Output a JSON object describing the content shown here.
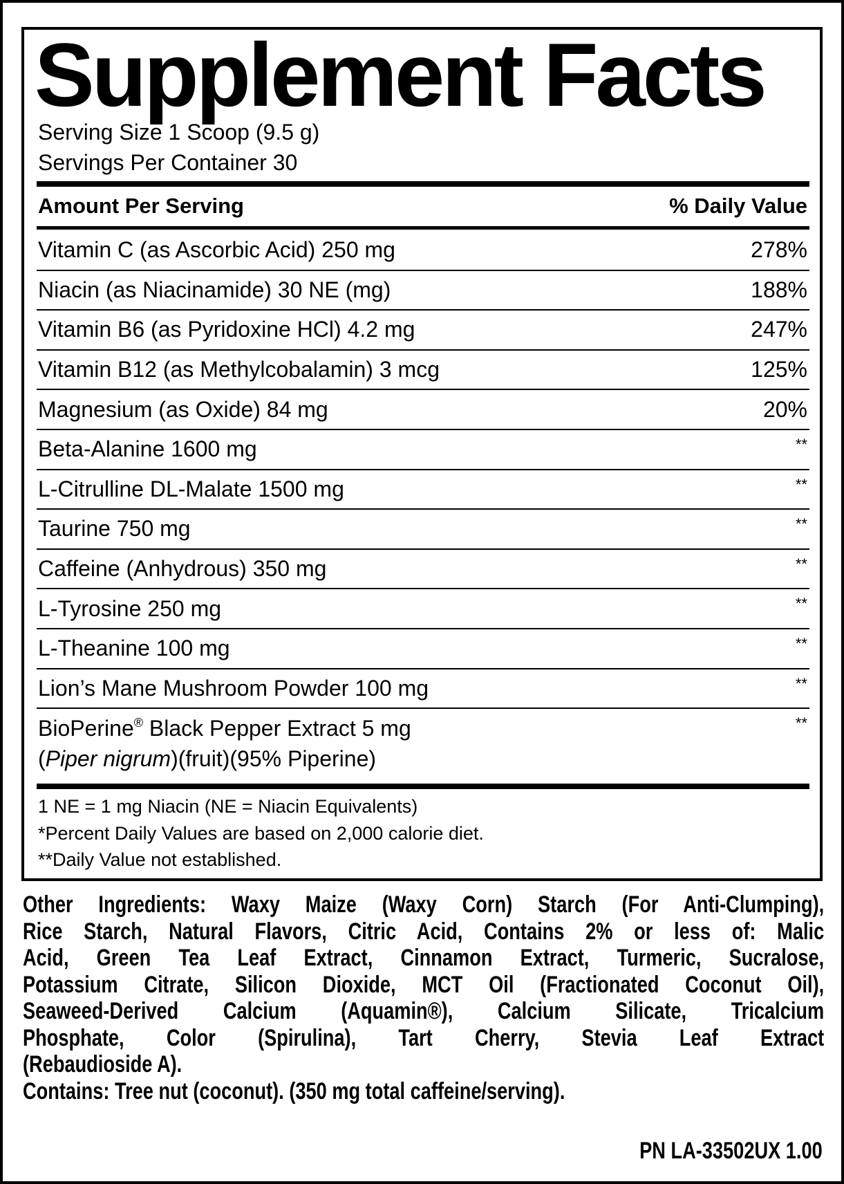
{
  "title": "Supplement Facts",
  "serving_size": "Serving Size 1 Scoop (9.5 g)",
  "servings_per_container": "Servings Per Container 30",
  "header": {
    "amount": "Amount Per Serving",
    "daily_value": "% Daily Value"
  },
  "rows": [
    {
      "name": "Vitamin C (as Ascorbic Acid) 250 mg",
      "dv": "278%"
    },
    {
      "name": "Niacin (as Niacinamide) 30 NE (mg)",
      "dv": "188%"
    },
    {
      "name": "Vitamin B6 (as Pyridoxine HCl) 4.2 mg",
      "dv": "247%"
    },
    {
      "name": "Vitamin B12 (as Methylcobalamin) 3 mcg",
      "dv": "125%"
    },
    {
      "name": "Magnesium (as Oxide) 84 mg",
      "dv": "20%"
    },
    {
      "name": "Beta-Alanine 1600 mg",
      "dv": "**"
    },
    {
      "name": "L-Citrulline DL-Malate 1500 mg",
      "dv": "**"
    },
    {
      "name": "Taurine 750 mg",
      "dv": "**"
    },
    {
      "name": "Caffeine (Anhydrous) 350 mg",
      "dv": "**"
    },
    {
      "name": "L-Tyrosine 250 mg",
      "dv": "**"
    },
    {
      "name": "L-Theanine 100 mg",
      "dv": "**"
    },
    {
      "name": "Lion’s Mane Mushroom Powder 100 mg",
      "dv": "**"
    }
  ],
  "bioperine": {
    "name_a": "BioPerine",
    "reg": "®",
    "name_b": " Black Pepper Extract 5 mg",
    "paren_open": "(",
    "latin": "Piper nigrum",
    "rest": ")(fruit)(95% Piperine)",
    "dv": "**"
  },
  "footnotes": [
    "1 NE = 1 mg Niacin (NE = Niacin Equivalents)",
    "*Percent Daily Values are based on 2,000 calorie diet.",
    "**Daily Value not established."
  ],
  "other_ingredients_lines": [
    "Other Ingredients: Waxy Maize (Waxy Corn) Starch (For Anti-Clumping),",
    "Rice Starch, Natural Flavors, Citric Acid, Contains 2% or less of: Malic",
    "Acid, Green Tea Leaf Extract, Cinnamon Extract, Turmeric, Sucralose,",
    "Potassium Citrate, Silicon Dioxide, MCT Oil (Fractionated Coconut Oil),",
    "Seaweed-Derived Calcium (Aquamin®), Calcium Silicate, Tricalcium",
    "Phosphate, Color (Spirulina), Tart Cherry, Stevia Leaf Extract",
    "(Rebaudioside A).",
    "Contains: Tree nut (coconut). (350 mg total caffeine/serving)."
  ],
  "part_number": "PN LA-33502UX 1.00"
}
